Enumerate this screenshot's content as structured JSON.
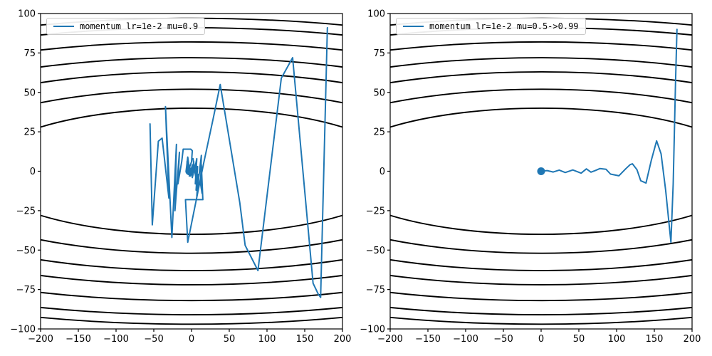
{
  "colors": {
    "trajectory": "#1f77b4",
    "contour": "#000000",
    "axes": "#000000",
    "tick_label": "#000000",
    "legend_border": "#cbcbcb",
    "background": "#ffffff"
  },
  "chart_data": [
    {
      "type": "line",
      "title": "",
      "legend_label": "momentum lr=1e-2 mu=0.9",
      "legend_position": "upper left",
      "grid": false,
      "xlim": [
        -200,
        200
      ],
      "ylim": [
        -100,
        100
      ],
      "xticks": [
        -200,
        -150,
        -100,
        -50,
        0,
        50,
        100,
        150,
        200
      ],
      "yticks": [
        -100,
        -75,
        -50,
        -25,
        0,
        25,
        50,
        75,
        100
      ],
      "contour_ellipses": {
        "center": [
          0,
          0
        ],
        "ry_levels": [
          40,
          52,
          63,
          72,
          82,
          91,
          97
        ],
        "rx_ratio": 7
      },
      "marker_point": [
        -3,
        0
      ],
      "trajectory": [
        [
          -55,
          30
        ],
        [
          -52,
          -34
        ],
        [
          -44,
          19
        ],
        [
          -39,
          21
        ],
        [
          -30,
          -17
        ],
        [
          -34.5,
          41
        ],
        [
          -26,
          -42
        ],
        [
          -20,
          17
        ],
        [
          -22,
          -25
        ],
        [
          -16,
          12
        ],
        [
          -18,
          -8
        ],
        [
          -13,
          6
        ],
        [
          -11,
          14
        ],
        [
          -6,
          14
        ],
        [
          -1,
          14
        ],
        [
          1,
          13
        ],
        [
          0,
          6
        ],
        [
          -3,
          2
        ],
        [
          -5,
          9
        ],
        [
          -7,
          1
        ],
        [
          -4,
          -2
        ],
        [
          -6,
          6
        ],
        [
          -2,
          -3
        ],
        [
          -4,
          4
        ],
        [
          -1,
          -1
        ],
        [
          -3,
          -3
        ],
        [
          0,
          2
        ],
        [
          -2,
          -2
        ],
        [
          1,
          4
        ],
        [
          -1,
          -3
        ],
        [
          2,
          1
        ],
        [
          0,
          -2
        ],
        [
          3,
          6
        ],
        [
          1,
          -4
        ],
        [
          4,
          2
        ],
        [
          2,
          8
        ],
        [
          5,
          -2
        ],
        [
          3,
          5
        ],
        [
          6,
          -5
        ],
        [
          4,
          1
        ],
        [
          7,
          8
        ],
        [
          5,
          -8
        ],
        [
          8,
          3
        ],
        [
          6,
          -12
        ],
        [
          9,
          -2
        ],
        [
          7,
          -16
        ],
        [
          11,
          2
        ],
        [
          13,
          10
        ],
        [
          12,
          -8
        ],
        [
          14,
          -14
        ],
        [
          13,
          4
        ],
        [
          15,
          -18
        ],
        [
          -8,
          -18
        ],
        [
          -5,
          -45
        ],
        [
          16,
          5
        ],
        [
          29,
          34
        ],
        [
          38,
          55
        ],
        [
          64,
          -20
        ],
        [
          71,
          -47
        ],
        [
          88,
          -63
        ],
        [
          119,
          59
        ],
        [
          134,
          72
        ],
        [
          161,
          -71
        ],
        [
          168,
          -78
        ],
        [
          171,
          -80
        ],
        [
          180,
          91
        ]
      ]
    },
    {
      "type": "line",
      "title": "",
      "legend_label": "momentum lr=1e-2 mu=0.5->0.99",
      "legend_position": "upper left",
      "grid": false,
      "xlim": [
        -200,
        200
      ],
      "ylim": [
        -100,
        100
      ],
      "xticks": [
        -200,
        -150,
        -100,
        -50,
        0,
        50,
        100,
        150,
        200
      ],
      "yticks": [
        -100,
        -75,
        -50,
        -25,
        0,
        25,
        50,
        75,
        100
      ],
      "contour_ellipses": {
        "center": [
          0,
          0
        ],
        "ry_levels": [
          40,
          52,
          63,
          72,
          82,
          91,
          97
        ],
        "rx_ratio": 7
      },
      "marker_point": [
        0,
        0
      ],
      "trajectory": [
        [
          0,
          0
        ],
        [
          8,
          0.4
        ],
        [
          16,
          -0.5
        ],
        [
          24,
          0.7
        ],
        [
          32,
          -0.8
        ],
        [
          42,
          0.8
        ],
        [
          53,
          -1.2
        ],
        [
          60,
          1.5
        ],
        [
          66,
          -0.6
        ],
        [
          72,
          0.5
        ],
        [
          78,
          1.7
        ],
        [
          86,
          1.2
        ],
        [
          92,
          -1.8
        ],
        [
          103,
          -2.9
        ],
        [
          112,
          1.5
        ],
        [
          118,
          4.2
        ],
        [
          121,
          4.7
        ],
        [
          127,
          1
        ],
        [
          132,
          -6
        ],
        [
          139,
          -7.5
        ],
        [
          146,
          7
        ],
        [
          153,
          19.3
        ],
        [
          159,
          11
        ],
        [
          165,
          -12
        ],
        [
          172,
          -45
        ],
        [
          175,
          -8
        ],
        [
          178,
          55
        ],
        [
          180,
          90
        ]
      ]
    }
  ]
}
